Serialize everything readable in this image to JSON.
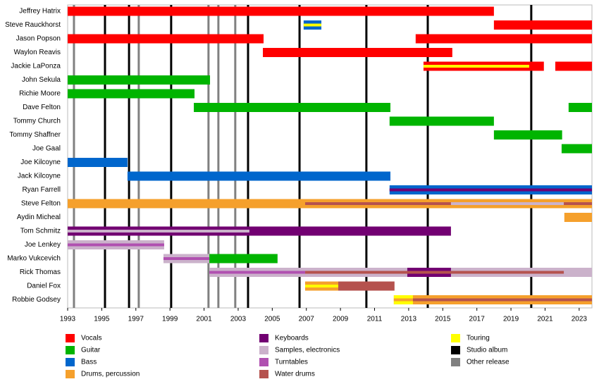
{
  "chart_data": {
    "type": "timeline",
    "members": [
      "Jeffrey Hatrix",
      "Steve Rauckhorst",
      "Jason Popson",
      "Waylon Reavis",
      "Jackie LaPonza",
      "John Sekula",
      "Richie Moore",
      "Dave Felton",
      "Tommy Church",
      "Tommy Shaffner",
      "Joe Gaal",
      "Joe Kilcoyne",
      "Jack Kilcoyne",
      "Ryan Farrell",
      "Steve Felton",
      "Aydin Micheal",
      "Tom Schmitz",
      "Joe Lenkey",
      "Marko Vukcevich",
      "Rick Thomas",
      "Daniel Fox",
      "Robbie Godsey"
    ],
    "legend": [
      {
        "name": "Vocals",
        "color": "#ff0000"
      },
      {
        "name": "Guitar",
        "color": "#00b400"
      },
      {
        "name": "Bass",
        "color": "#0066cc"
      },
      {
        "name": "Drums, percussion",
        "color": "#f5a02c"
      },
      {
        "name": "Keyboards",
        "color": "#720072"
      },
      {
        "name": "Samples, electronics",
        "color": "#cbb2cb"
      },
      {
        "name": "Turntables",
        "color": "#b050b0"
      },
      {
        "name": "Water drums",
        "color": "#b5524e"
      },
      {
        "name": "Touring",
        "color": "#ffff00"
      },
      {
        "name": "Studio album",
        "color": "#000000"
      },
      {
        "name": "Other release",
        "color": "#808080"
      }
    ],
    "xlim": [
      1993,
      2023.75
    ],
    "xticks": [
      1993,
      1995,
      1997,
      1999,
      2001,
      2003,
      2005,
      2007,
      2009,
      2011,
      2013,
      2015,
      2017,
      2019,
      2021,
      2023
    ],
    "releases": [
      {
        "year": 1993.37,
        "role": 10
      },
      {
        "year": 1995.19,
        "role": 9
      },
      {
        "year": 1996.6,
        "role": 9
      },
      {
        "year": 1997.17,
        "role": 10
      },
      {
        "year": 1999.07,
        "role": 9
      },
      {
        "year": 2001.26,
        "role": 10
      },
      {
        "year": 2001.84,
        "role": 10
      },
      {
        "year": 2002.83,
        "role": 10
      },
      {
        "year": 2003.58,
        "role": 9
      },
      {
        "year": 2006.6,
        "role": 9
      },
      {
        "year": 2010.52,
        "role": 9
      },
      {
        "year": 2014.12,
        "role": 9
      },
      {
        "year": 2020.19,
        "role": 9
      }
    ],
    "bars": [
      {
        "row": 0,
        "start": 1993,
        "end": 2018.0,
        "role": 0
      },
      {
        "row": 1,
        "start": 2018.0,
        "end": 2023.75,
        "role": 0
      },
      {
        "row": 1,
        "start": 2006.84,
        "end": 2007.88,
        "role": 2
      },
      {
        "row": 2,
        "start": 1993,
        "end": 2004.49,
        "role": 0
      },
      {
        "row": 2,
        "start": 2013.41,
        "end": 2023.75,
        "role": 0
      },
      {
        "row": 3,
        "start": 2004.45,
        "end": 2015.56,
        "role": 0
      },
      {
        "row": 4,
        "start": 2013.87,
        "end": 2020.93,
        "role": 0
      },
      {
        "row": 4,
        "start": 2021.6,
        "end": 2023.75,
        "role": 0
      },
      {
        "row": 5,
        "start": 1993,
        "end": 2001.35,
        "role": 1
      },
      {
        "row": 6,
        "start": 1993,
        "end": 2000.44,
        "role": 1
      },
      {
        "row": 7,
        "start": 2000.4,
        "end": 2011.93,
        "role": 1
      },
      {
        "row": 7,
        "start": 2022.38,
        "end": 2023.75,
        "role": 1
      },
      {
        "row": 8,
        "start": 2011.88,
        "end": 2018.0,
        "role": 1
      },
      {
        "row": 9,
        "start": 2018.0,
        "end": 2022.0,
        "role": 1
      },
      {
        "row": 10,
        "start": 2021.97,
        "end": 2023.75,
        "role": 1
      },
      {
        "row": 11,
        "start": 1993,
        "end": 1996.51,
        "role": 2
      },
      {
        "row": 12,
        "start": 1996.51,
        "end": 2011.93,
        "role": 2
      },
      {
        "row": 13,
        "start": 2011.88,
        "end": 2023.75,
        "role": 2
      },
      {
        "row": 14,
        "start": 1993,
        "end": 2023.75,
        "role": 3
      },
      {
        "row": 15,
        "start": 2022.13,
        "end": 2023.75,
        "role": 3
      },
      {
        "row": 16,
        "start": 1993,
        "end": 2015.48,
        "role": 4
      },
      {
        "row": 17,
        "start": 1993,
        "end": 1998.66,
        "role": 5
      },
      {
        "row": 18,
        "start": 1998.62,
        "end": 2001.31,
        "role": 5
      },
      {
        "row": 18,
        "start": 2001.31,
        "end": 2005.31,
        "role": 1
      },
      {
        "row": 19,
        "start": 2001.31,
        "end": 2023.75,
        "role": 5
      },
      {
        "row": 19,
        "start": 2012.92,
        "end": 2015.48,
        "role": 4
      },
      {
        "row": 20,
        "start": 2006.93,
        "end": 2012.17,
        "role": 7
      },
      {
        "row": 20,
        "start": 2006.93,
        "end": 2008.87,
        "role": 3
      },
      {
        "row": 21,
        "start": 2012.13,
        "end": 2023.75,
        "role": 3
      },
      {
        "row": 21,
        "start": 2012.13,
        "end": 2013.25,
        "role": 8
      }
    ],
    "strips": [
      {
        "row": 1,
        "start": 2006.84,
        "end": 2007.88,
        "role": 8
      },
      {
        "row": 4,
        "start": 2013.87,
        "end": 2020.07,
        "role": 8
      },
      {
        "row": 13,
        "start": 2011.88,
        "end": 2023.75,
        "role": 4
      },
      {
        "row": 14,
        "start": 2006.93,
        "end": 2015.48,
        "role": 7
      },
      {
        "row": 14,
        "start": 2015.48,
        "end": 2022.1,
        "role": 5
      },
      {
        "row": 14,
        "start": 2022.1,
        "end": 2023.75,
        "role": 7
      },
      {
        "row": 16,
        "start": 1993,
        "end": 2003.66,
        "role": 5
      },
      {
        "row": 17,
        "start": 1993,
        "end": 1998.66,
        "role": 6
      },
      {
        "row": 18,
        "start": 1998.62,
        "end": 2001.31,
        "role": 6
      },
      {
        "row": 19,
        "start": 2001.31,
        "end": 2006.93,
        "role": 6
      },
      {
        "row": 19,
        "start": 2006.93,
        "end": 2022.1,
        "role": 7
      },
      {
        "row": 20,
        "start": 2006.93,
        "end": 2008.87,
        "role": 8
      },
      {
        "row": 21,
        "start": 2012.13,
        "end": 2013.25,
        "role": 3
      },
      {
        "row": 21,
        "start": 2013.25,
        "end": 2023.75,
        "role": 7
      }
    ]
  }
}
